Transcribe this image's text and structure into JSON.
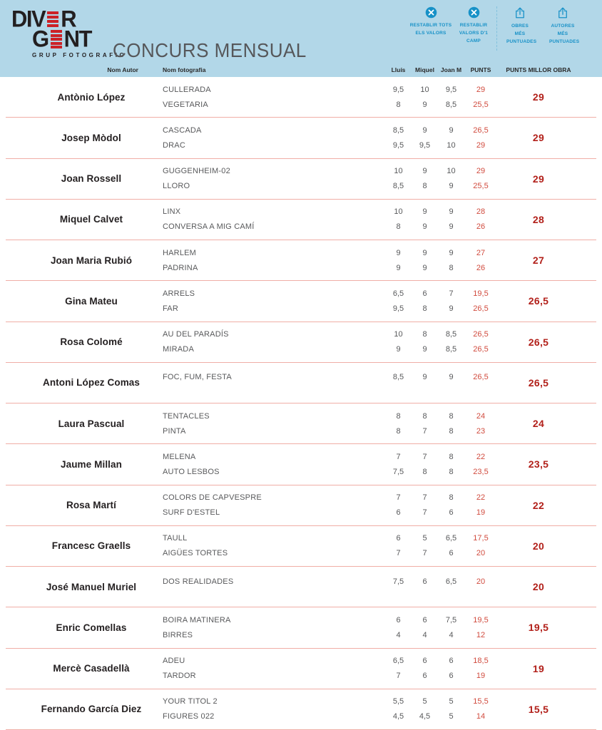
{
  "header": {
    "logo": {
      "line1_left": "DIV",
      "line1_right": "R",
      "line2_left": "G",
      "line2_right": "NT",
      "subtitle": "GRUP FOTOGRAFIC"
    },
    "title": "CONCURS MENSUAL",
    "controls": [
      {
        "icon": "x-circle-icon",
        "label": "RESTABLIR TOTS ELS VALORS"
      },
      {
        "icon": "x-circle-icon",
        "label": "RESTABLIR VALORS D'1 CAMP"
      },
      {
        "icon": "upload-icon",
        "label": "OBRES MÉS PUNTUADES"
      },
      {
        "icon": "upload-icon",
        "label": "AUTORES MÉS PUNTUADES"
      }
    ],
    "columns": {
      "author": "Nom Autor",
      "photo": "Nom fotografia",
      "judge1": "Lluís",
      "judge2": "Miquel",
      "judge3": "Joan M",
      "points": "PUNTS",
      "best": "PUNTS MILLOR OBRA"
    }
  },
  "colors": {
    "header_bg": "#b2d7e8",
    "accent_blue": "#1791c7",
    "logo_red": "#cc2127",
    "points_red": "#d14b3e",
    "best_red": "#b2201a",
    "separator": "#f0aea6"
  },
  "rows": [
    {
      "author": "Antònio López",
      "best": "29",
      "photos": [
        {
          "title": "CULLERADA",
          "scores": [
            "9,5",
            "10",
            "9,5"
          ],
          "points": "29"
        },
        {
          "title": "VEGETARIA",
          "scores": [
            "8",
            "9",
            "8,5"
          ],
          "points": "25,5"
        }
      ]
    },
    {
      "author": "Josep Mòdol",
      "best": "29",
      "photos": [
        {
          "title": "CASCADA",
          "scores": [
            "8,5",
            "9",
            "9"
          ],
          "points": "26,5"
        },
        {
          "title": "DRAC",
          "scores": [
            "9,5",
            "9,5",
            "10"
          ],
          "points": "29"
        }
      ]
    },
    {
      "author": "Joan Rossell",
      "best": "29",
      "photos": [
        {
          "title": "GUGGENHEIM-02",
          "scores": [
            "10",
            "9",
            "10"
          ],
          "points": "29"
        },
        {
          "title": "LLORO",
          "scores": [
            "8,5",
            "8",
            "9"
          ],
          "points": "25,5"
        }
      ]
    },
    {
      "author": "Miquel Calvet",
      "best": "28",
      "photos": [
        {
          "title": "LINX",
          "scores": [
            "10",
            "9",
            "9"
          ],
          "points": "28"
        },
        {
          "title": "CONVERSA A MIG CAMÍ",
          "scores": [
            "8",
            "9",
            "9"
          ],
          "points": "26"
        }
      ]
    },
    {
      "author": "Joan Maria Rubió",
      "best": "27",
      "photos": [
        {
          "title": "HARLEM",
          "scores": [
            "9",
            "9",
            "9"
          ],
          "points": "27"
        },
        {
          "title": "PADRINA",
          "scores": [
            "9",
            "9",
            "8"
          ],
          "points": "26"
        }
      ]
    },
    {
      "author": "Gina Mateu",
      "best": "26,5",
      "photos": [
        {
          "title": "ARRELS",
          "scores": [
            "6,5",
            "6",
            "7"
          ],
          "points": "19,5"
        },
        {
          "title": "FAR",
          "scores": [
            "9,5",
            "8",
            "9"
          ],
          "points": "26,5"
        }
      ]
    },
    {
      "author": "Rosa Colomé",
      "best": "26,5",
      "photos": [
        {
          "title": "AU DEL PARADÍS",
          "scores": [
            "10",
            "8",
            "8,5"
          ],
          "points": "26,5"
        },
        {
          "title": "MIRADA",
          "scores": [
            "9",
            "9",
            "8,5"
          ],
          "points": "26,5"
        }
      ]
    },
    {
      "author": "Antoni López Comas",
      "best": "26,5",
      "photos": [
        {
          "title": "FOC, FUM, FESTA",
          "scores": [
            "8,5",
            "9",
            "9"
          ],
          "points": "26,5"
        }
      ]
    },
    {
      "author": "Laura Pascual",
      "best": "24",
      "photos": [
        {
          "title": "TENTACLES",
          "scores": [
            "8",
            "8",
            "8"
          ],
          "points": "24"
        },
        {
          "title": "PINTA",
          "scores": [
            "8",
            "7",
            "8"
          ],
          "points": "23"
        }
      ]
    },
    {
      "author": "Jaume Millan",
      "best": "23,5",
      "photos": [
        {
          "title": "MELENA",
          "scores": [
            "7",
            "7",
            "8"
          ],
          "points": "22"
        },
        {
          "title": "AUTO LESBOS",
          "scores": [
            "7,5",
            "8",
            "8"
          ],
          "points": "23,5"
        }
      ]
    },
    {
      "author": "Rosa Martí",
      "best": "22",
      "photos": [
        {
          "title": "COLORS DE CAPVESPRE",
          "scores": [
            "7",
            "7",
            "8"
          ],
          "points": "22"
        },
        {
          "title": "SURF D'ESTEL",
          "scores": [
            "6",
            "7",
            "6"
          ],
          "points": "19"
        }
      ]
    },
    {
      "author": "Francesc Graells",
      "best": "20",
      "photos": [
        {
          "title": "TAULL",
          "scores": [
            "6",
            "5",
            "6,5"
          ],
          "points": "17,5"
        },
        {
          "title": "AIGÜES TORTES",
          "scores": [
            "7",
            "7",
            "6"
          ],
          "points": "20"
        }
      ]
    },
    {
      "author": "José Manuel Muriel",
      "best": "20",
      "photos": [
        {
          "title": "DOS REALIDADES",
          "scores": [
            "7,5",
            "6",
            "6,5"
          ],
          "points": "20"
        }
      ]
    },
    {
      "author": "Enric Comellas",
      "best": "19,5",
      "photos": [
        {
          "title": "BOIRA MATINERA",
          "scores": [
            "6",
            "6",
            "7,5"
          ],
          "points": "19,5"
        },
        {
          "title": "BIRRES",
          "scores": [
            "4",
            "4",
            "4"
          ],
          "points": "12"
        }
      ]
    },
    {
      "author": "Mercè Casadellà",
      "best": "19",
      "photos": [
        {
          "title": "ADEU",
          "scores": [
            "6,5",
            "6",
            "6"
          ],
          "points": "18,5"
        },
        {
          "title": "TARDOR",
          "scores": [
            "7",
            "6",
            "6"
          ],
          "points": "19"
        }
      ]
    },
    {
      "author": "Fernando García Diez",
      "best": "15,5",
      "photos": [
        {
          "title": "YOUR TITOL 2",
          "scores": [
            "5,5",
            "5",
            "5"
          ],
          "points": "15,5"
        },
        {
          "title": "FIGURES 022",
          "scores": [
            "4,5",
            "4,5",
            "5"
          ],
          "points": "14"
        }
      ]
    }
  ]
}
